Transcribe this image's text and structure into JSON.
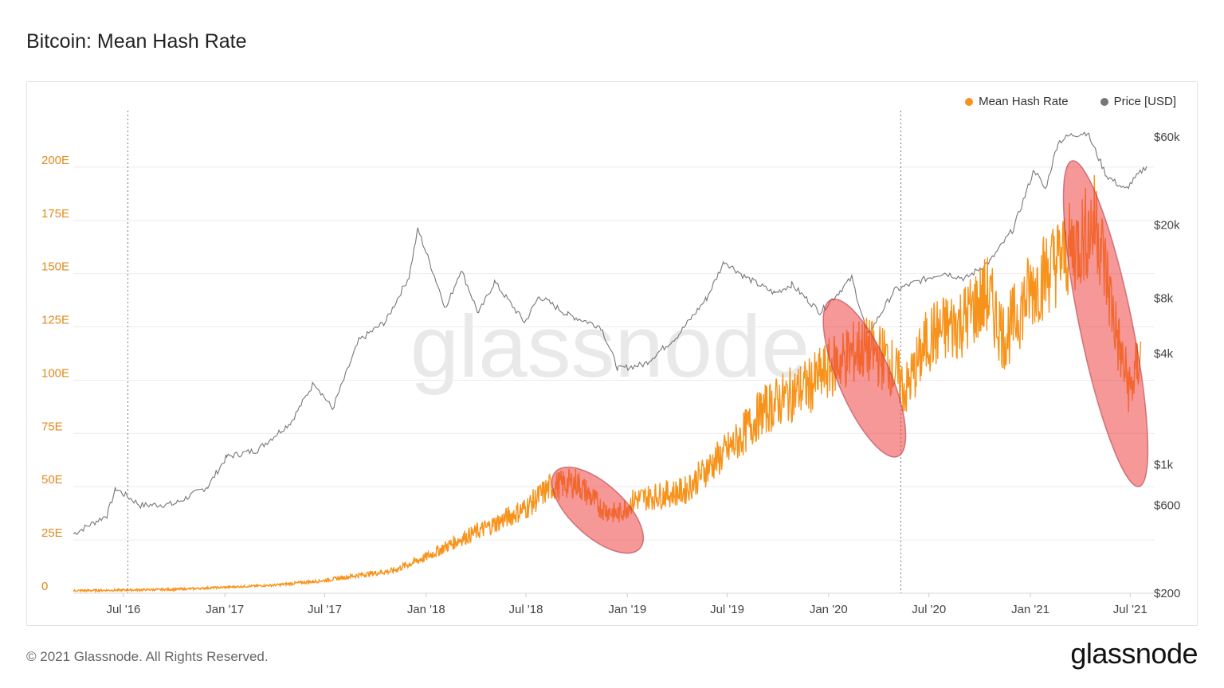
{
  "title": "Bitcoin: Mean Hash Rate",
  "footer": "© 2021 Glassnode. All Rights Reserved.",
  "brand": "glassnode",
  "watermark": "glassnode",
  "colors": {
    "hash": "#f7931a",
    "price": "#777777",
    "highlight": "#ef4444",
    "highlight_line": "#f28b00"
  },
  "chart_data": {
    "type": "line",
    "title": "Bitcoin: Mean Hash Rate",
    "legend": "top-right",
    "grid": true,
    "x_axis": {
      "range": [
        "2016-04-01",
        "2021-07-31"
      ],
      "ticks": [
        {
          "date": "2016-07-01",
          "label": "Jul '16"
        },
        {
          "date": "2017-01-01",
          "label": "Jan '17"
        },
        {
          "date": "2017-07-01",
          "label": "Jul '17"
        },
        {
          "date": "2018-01-01",
          "label": "Jan '18"
        },
        {
          "date": "2018-07-01",
          "label": "Jul '18"
        },
        {
          "date": "2019-01-01",
          "label": "Jan '19"
        },
        {
          "date": "2019-07-01",
          "label": "Jul '19"
        },
        {
          "date": "2020-01-01",
          "label": "Jan '20"
        },
        {
          "date": "2020-07-01",
          "label": "Jul '20"
        },
        {
          "date": "2021-01-01",
          "label": "Jan '21"
        },
        {
          "date": "2021-07-01",
          "label": "Jul '21"
        }
      ],
      "halving_lines": [
        "2016-07-09",
        "2020-05-11"
      ]
    },
    "y_left": {
      "range": [
        0,
        225
      ],
      "ticks": [
        {
          "value": 0,
          "label": "0"
        },
        {
          "value": 25,
          "label": "25E"
        },
        {
          "value": 50,
          "label": "50E"
        },
        {
          "value": 75,
          "label": "75E"
        },
        {
          "value": 100,
          "label": "100E"
        },
        {
          "value": 125,
          "label": "125E"
        },
        {
          "value": 150,
          "label": "150E"
        },
        {
          "value": 175,
          "label": "175E"
        },
        {
          "value": 200,
          "label": "200E"
        }
      ]
    },
    "y_right": {
      "scale": "log",
      "range": [
        200,
        80000
      ],
      "ticks": [
        {
          "value": 200,
          "label": "$200"
        },
        {
          "value": 600,
          "label": "$600"
        },
        {
          "value": 1000,
          "label": "$1k"
        },
        {
          "value": 4000,
          "label": "$4k"
        },
        {
          "value": 8000,
          "label": "$8k"
        },
        {
          "value": 20000,
          "label": "$20k"
        },
        {
          "value": 60000,
          "label": "$60k"
        }
      ]
    },
    "series": [
      {
        "name": "Mean Hash Rate",
        "axis": "left",
        "points": [
          [
            "2016-04-01",
            1.2
          ],
          [
            "2016-07-01",
            1.5
          ],
          [
            "2016-10-01",
            1.8
          ],
          [
            "2017-01-01",
            2.8
          ],
          [
            "2017-04-01",
            3.8
          ],
          [
            "2017-07-01",
            6.0
          ],
          [
            "2017-09-01",
            8.5
          ],
          [
            "2017-11-01",
            10.5
          ],
          [
            "2018-01-01",
            17.0
          ],
          [
            "2018-03-01",
            25.0
          ],
          [
            "2018-05-01",
            32.0
          ],
          [
            "2018-07-01",
            40.0
          ],
          [
            "2018-08-15",
            50.0
          ],
          [
            "2018-10-01",
            52.0
          ],
          [
            "2018-11-15",
            40.0
          ],
          [
            "2018-12-15",
            37.0
          ],
          [
            "2019-01-15",
            44.0
          ],
          [
            "2019-03-01",
            46.0
          ],
          [
            "2019-04-15",
            48.0
          ],
          [
            "2019-06-01",
            60.0
          ],
          [
            "2019-07-15",
            70.0
          ],
          [
            "2019-09-01",
            85.0
          ],
          [
            "2019-10-15",
            92.0
          ],
          [
            "2019-12-01",
            98.0
          ],
          [
            "2020-01-15",
            108.0
          ],
          [
            "2020-03-01",
            115.0
          ],
          [
            "2020-04-15",
            110.0
          ],
          [
            "2020-05-20",
            95.0
          ],
          [
            "2020-07-01",
            120.0
          ],
          [
            "2020-09-01",
            128.0
          ],
          [
            "2020-10-15",
            140.0
          ],
          [
            "2020-11-15",
            120.0
          ],
          [
            "2021-01-01",
            142.0
          ],
          [
            "2021-02-15",
            155.0
          ],
          [
            "2021-04-01",
            165.0
          ],
          [
            "2021-05-01",
            175.0
          ],
          [
            "2021-05-25",
            140.0
          ],
          [
            "2021-06-15",
            110.0
          ],
          [
            "2021-07-01",
            95.0
          ],
          [
            "2021-07-20",
            112.0
          ]
        ]
      },
      {
        "name": "Price [USD]",
        "axis": "right",
        "points": [
          [
            "2016-04-01",
            420
          ],
          [
            "2016-06-01",
            530
          ],
          [
            "2016-06-17",
            740
          ],
          [
            "2016-08-01",
            600
          ],
          [
            "2016-10-01",
            610
          ],
          [
            "2016-12-01",
            760
          ],
          [
            "2017-01-04",
            1100
          ],
          [
            "2017-03-01",
            1200
          ],
          [
            "2017-05-01",
            1700
          ],
          [
            "2017-06-12",
            2800
          ],
          [
            "2017-07-15",
            2000
          ],
          [
            "2017-09-01",
            4700
          ],
          [
            "2017-10-20",
            6000
          ],
          [
            "2017-12-01",
            10500
          ],
          [
            "2017-12-17",
            19000
          ],
          [
            "2018-02-06",
            7000
          ],
          [
            "2018-03-05",
            11500
          ],
          [
            "2018-04-06",
            6600
          ],
          [
            "2018-05-05",
            9800
          ],
          [
            "2018-06-29",
            5900
          ],
          [
            "2018-07-25",
            8200
          ],
          [
            "2018-09-15",
            6500
          ],
          [
            "2018-11-14",
            5600
          ],
          [
            "2018-12-15",
            3300
          ],
          [
            "2019-02-01",
            3500
          ],
          [
            "2019-04-02",
            5000
          ],
          [
            "2019-05-25",
            8000
          ],
          [
            "2019-06-26",
            12700
          ],
          [
            "2019-08-01",
            10500
          ],
          [
            "2019-09-25",
            8500
          ],
          [
            "2019-10-26",
            9500
          ],
          [
            "2019-12-17",
            6700
          ],
          [
            "2020-02-12",
            10300
          ],
          [
            "2020-03-12",
            5000
          ],
          [
            "2020-04-29",
            8800
          ],
          [
            "2020-06-01",
            9600
          ],
          [
            "2020-07-27",
            11000
          ],
          [
            "2020-09-05",
            10200
          ],
          [
            "2020-10-21",
            12800
          ],
          [
            "2020-12-01",
            19000
          ],
          [
            "2021-01-08",
            40000
          ],
          [
            "2021-01-28",
            31000
          ],
          [
            "2021-02-20",
            56000
          ],
          [
            "2021-03-13",
            61000
          ],
          [
            "2021-04-14",
            63500
          ],
          [
            "2021-05-19",
            37000
          ],
          [
            "2021-06-22",
            31000
          ],
          [
            "2021-07-31",
            42000
          ]
        ]
      }
    ],
    "highlights": [
      {
        "x_start": "2018-09-01",
        "x_end": "2019-01-15",
        "y_top": 55,
        "y_bottom": 23
      },
      {
        "x_start": "2020-01-10",
        "x_end": "2020-05-01",
        "y_top": 135,
        "y_bottom": 67
      },
      {
        "x_start": "2021-03-20",
        "x_end": "2021-07-15",
        "y_top": 200,
        "y_bottom": 53
      }
    ]
  },
  "legend": {
    "items": [
      {
        "label": "Mean Hash Rate",
        "color": "#f7931a"
      },
      {
        "label": "Price [USD]",
        "color": "#777777"
      }
    ]
  }
}
